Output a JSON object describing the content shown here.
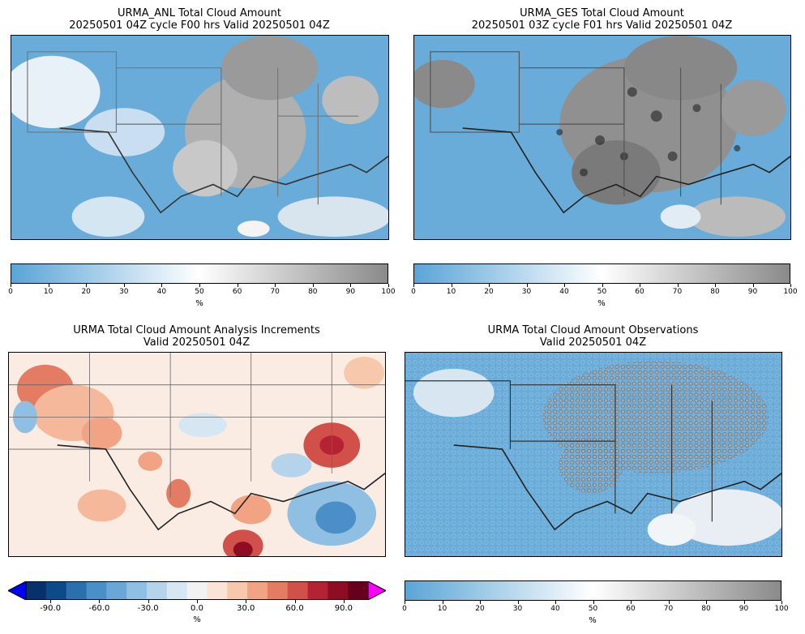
{
  "panels": [
    {
      "title_line1": "URMA_ANL Total Cloud Amount",
      "title_line2": "20250501 04Z cycle F00 hrs Valid 20250501 04Z"
    },
    {
      "title_line1": "URMA_GES Total Cloud Amount",
      "title_line2": "20250501 03Z cycle F01 hrs Valid 20250501 04Z"
    },
    {
      "title_line1": "URMA Total Cloud Amount Analysis Increments",
      "title_line2": "Valid 20250501 04Z"
    },
    {
      "title_line1": "URMA Total Cloud Amount Observations",
      "title_line2": "Valid 20250501 04Z"
    }
  ],
  "colorbar_cloud": {
    "ticks": [
      "0",
      "10",
      "20",
      "30",
      "40",
      "50",
      "60",
      "70",
      "80",
      "90",
      "100"
    ],
    "unit": "%",
    "colors": [
      "#5aa5d6",
      "#ffffff",
      "#8a8a8a"
    ]
  },
  "colorbar_increment": {
    "ticks": [
      "-90.0",
      "-60.0",
      "-30.0",
      "0.0",
      "30.0",
      "60.0",
      "90.0"
    ],
    "unit": "%",
    "under_color": "#0000ff",
    "over_color": "#ff00ff",
    "colors": [
      "#08306b",
      "#0d4a8a",
      "#2c6fae",
      "#4a8fc7",
      "#6aa7d6",
      "#8fbfe2",
      "#b5d4ec",
      "#d6e6f3",
      "#f2f2f2",
      "#fbe3d6",
      "#f8c8ad",
      "#f1a383",
      "#e47b63",
      "#d1504a",
      "#b52233",
      "#8f0d23",
      "#67001f"
    ]
  }
}
